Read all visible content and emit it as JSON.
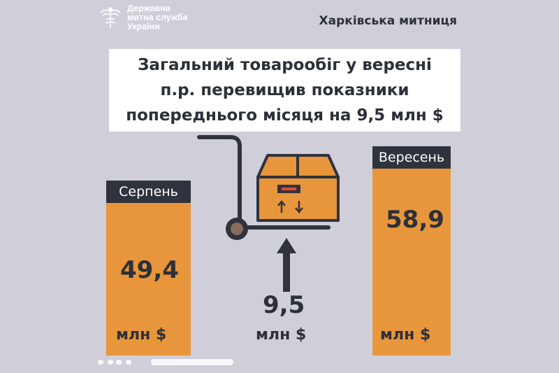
{
  "logo": {
    "line1": "Державна",
    "line2": "митна служба",
    "line3": "України"
  },
  "customs_office": "Харківська митниця",
  "headline": {
    "line1": "Загальний товарообіг у вересні",
    "line2": "п.р. перевищив показники",
    "line3": "попереднього місяця на 9,5 млн $"
  },
  "august": {
    "label": "Серпень",
    "value": "49,4",
    "unit": "млн $"
  },
  "september": {
    "label": "Вересень",
    "value": "58,9",
    "unit": "млн $"
  },
  "difference": {
    "value": "9,5",
    "unit": "млн $"
  },
  "colors": {
    "background": "#cfced9",
    "bar": "#e8963c",
    "label_bg": "#2f333d",
    "text": "#2d3038"
  },
  "icons": [
    "customs-emblem-icon",
    "box-on-hand-truck-icon",
    "up-arrow-icon"
  ]
}
